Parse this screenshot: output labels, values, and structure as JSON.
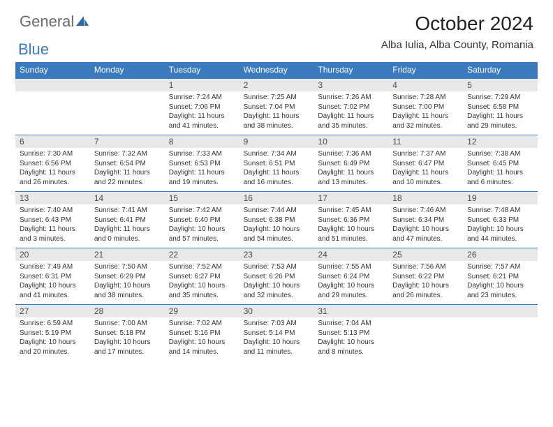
{
  "logo": {
    "general": "General",
    "blue": "Blue"
  },
  "title": "October 2024",
  "location": "Alba Iulia, Alba County, Romania",
  "colors": {
    "header_bg": "#3a7bbf",
    "header_text": "#ffffff",
    "daynum_bg": "#e8e8e8",
    "week_border": "#3a7bbf",
    "body_text": "#333333",
    "logo_general": "#6a6a6a",
    "logo_blue": "#3a7bbf"
  },
  "weekdays": [
    "Sunday",
    "Monday",
    "Tuesday",
    "Wednesday",
    "Thursday",
    "Friday",
    "Saturday"
  ],
  "weeks": [
    [
      null,
      null,
      {
        "n": "1",
        "sr": "7:24 AM",
        "ss": "7:06 PM",
        "dlh": "11",
        "dlm": "41"
      },
      {
        "n": "2",
        "sr": "7:25 AM",
        "ss": "7:04 PM",
        "dlh": "11",
        "dlm": "38"
      },
      {
        "n": "3",
        "sr": "7:26 AM",
        "ss": "7:02 PM",
        "dlh": "11",
        "dlm": "35"
      },
      {
        "n": "4",
        "sr": "7:28 AM",
        "ss": "7:00 PM",
        "dlh": "11",
        "dlm": "32"
      },
      {
        "n": "5",
        "sr": "7:29 AM",
        "ss": "6:58 PM",
        "dlh": "11",
        "dlm": "29"
      }
    ],
    [
      {
        "n": "6",
        "sr": "7:30 AM",
        "ss": "6:56 PM",
        "dlh": "11",
        "dlm": "26"
      },
      {
        "n": "7",
        "sr": "7:32 AM",
        "ss": "6:54 PM",
        "dlh": "11",
        "dlm": "22"
      },
      {
        "n": "8",
        "sr": "7:33 AM",
        "ss": "6:53 PM",
        "dlh": "11",
        "dlm": "19"
      },
      {
        "n": "9",
        "sr": "7:34 AM",
        "ss": "6:51 PM",
        "dlh": "11",
        "dlm": "16"
      },
      {
        "n": "10",
        "sr": "7:36 AM",
        "ss": "6:49 PM",
        "dlh": "11",
        "dlm": "13"
      },
      {
        "n": "11",
        "sr": "7:37 AM",
        "ss": "6:47 PM",
        "dlh": "11",
        "dlm": "10"
      },
      {
        "n": "12",
        "sr": "7:38 AM",
        "ss": "6:45 PM",
        "dlh": "11",
        "dlm": "6"
      }
    ],
    [
      {
        "n": "13",
        "sr": "7:40 AM",
        "ss": "6:43 PM",
        "dlh": "11",
        "dlm": "3"
      },
      {
        "n": "14",
        "sr": "7:41 AM",
        "ss": "6:41 PM",
        "dlh": "11",
        "dlm": "0"
      },
      {
        "n": "15",
        "sr": "7:42 AM",
        "ss": "6:40 PM",
        "dlh": "10",
        "dlm": "57"
      },
      {
        "n": "16",
        "sr": "7:44 AM",
        "ss": "6:38 PM",
        "dlh": "10",
        "dlm": "54"
      },
      {
        "n": "17",
        "sr": "7:45 AM",
        "ss": "6:36 PM",
        "dlh": "10",
        "dlm": "51"
      },
      {
        "n": "18",
        "sr": "7:46 AM",
        "ss": "6:34 PM",
        "dlh": "10",
        "dlm": "47"
      },
      {
        "n": "19",
        "sr": "7:48 AM",
        "ss": "6:33 PM",
        "dlh": "10",
        "dlm": "44"
      }
    ],
    [
      {
        "n": "20",
        "sr": "7:49 AM",
        "ss": "6:31 PM",
        "dlh": "10",
        "dlm": "41"
      },
      {
        "n": "21",
        "sr": "7:50 AM",
        "ss": "6:29 PM",
        "dlh": "10",
        "dlm": "38"
      },
      {
        "n": "22",
        "sr": "7:52 AM",
        "ss": "6:27 PM",
        "dlh": "10",
        "dlm": "35"
      },
      {
        "n": "23",
        "sr": "7:53 AM",
        "ss": "6:26 PM",
        "dlh": "10",
        "dlm": "32"
      },
      {
        "n": "24",
        "sr": "7:55 AM",
        "ss": "6:24 PM",
        "dlh": "10",
        "dlm": "29"
      },
      {
        "n": "25",
        "sr": "7:56 AM",
        "ss": "6:22 PM",
        "dlh": "10",
        "dlm": "26"
      },
      {
        "n": "26",
        "sr": "7:57 AM",
        "ss": "6:21 PM",
        "dlh": "10",
        "dlm": "23"
      }
    ],
    [
      {
        "n": "27",
        "sr": "6:59 AM",
        "ss": "5:19 PM",
        "dlh": "10",
        "dlm": "20"
      },
      {
        "n": "28",
        "sr": "7:00 AM",
        "ss": "5:18 PM",
        "dlh": "10",
        "dlm": "17"
      },
      {
        "n": "29",
        "sr": "7:02 AM",
        "ss": "5:16 PM",
        "dlh": "10",
        "dlm": "14"
      },
      {
        "n": "30",
        "sr": "7:03 AM",
        "ss": "5:14 PM",
        "dlh": "10",
        "dlm": "11"
      },
      {
        "n": "31",
        "sr": "7:04 AM",
        "ss": "5:13 PM",
        "dlh": "10",
        "dlm": "8"
      },
      null,
      null
    ]
  ],
  "labels": {
    "sunrise_prefix": "Sunrise: ",
    "sunset_prefix": "Sunset: ",
    "daylight_prefix": "Daylight: ",
    "hours_word": " hours",
    "and_word": "and ",
    "minutes_word": " minutes."
  }
}
